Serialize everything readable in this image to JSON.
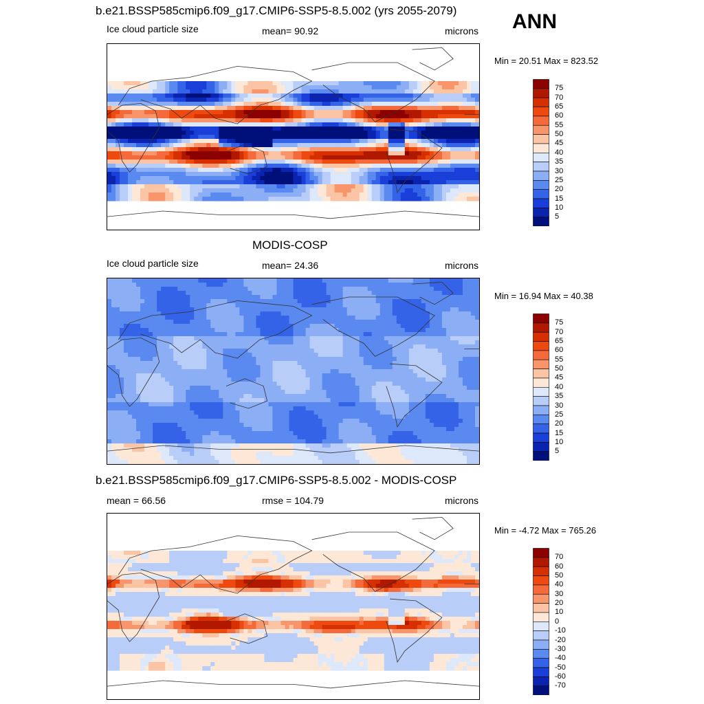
{
  "season": "ANN",
  "panels": [
    {
      "title": "b.e21.BSSP585cmip6.f09_g17.CMIP6-SSP5-8.5.002 (yrs 2055-2079)",
      "left": "Ice cloud particle size",
      "center": "mean=  90.92",
      "right": "microns",
      "minmax": "Min =  20.51 Max = 823.52",
      "field": "model",
      "legend_labels": [
        "75",
        "70",
        "65",
        "60",
        "55",
        "50",
        "45",
        "40",
        "35",
        "30",
        "25",
        "20",
        "15",
        "10",
        "5"
      ]
    },
    {
      "title": "MODIS-COSP",
      "left": "Ice cloud particle size",
      "center": "mean=  24.36",
      "right": "microns",
      "minmax": "Min =  16.94 Max =  40.38",
      "field": "obs",
      "legend_labels": [
        "75",
        "70",
        "65",
        "60",
        "55",
        "50",
        "45",
        "40",
        "35",
        "30",
        "25",
        "20",
        "15",
        "10",
        "5"
      ]
    },
    {
      "title": "b.e21.BSSP585cmip6.f09_g17.CMIP6-SSP5-8.5.002 - MODIS-COSP",
      "left": "mean =  66.56",
      "center": "rmse = 104.79",
      "right": "microns",
      "minmax": "Min =  -4.72 Max = 765.26",
      "field": "diff",
      "legend_labels": [
        "70",
        "60",
        "50",
        "40",
        "30",
        "20",
        "10",
        "0",
        "-10",
        "-20",
        "-30",
        "-40",
        "-50",
        "-60",
        "-70"
      ]
    }
  ],
  "colors": {
    "scale_top_to_bottom": [
      "#8b0000",
      "#b01800",
      "#d63000",
      "#ee4a10",
      "#f46a3a",
      "#f8956a",
      "#fbc4a4",
      "#fde8d8",
      "#dde9fb",
      "#b8cdf7",
      "#8caef5",
      "#5a89f0",
      "#3563e8",
      "#1a3fd8",
      "#0a24b0",
      "#00107a"
    ],
    "coastline": "#333333"
  }
}
